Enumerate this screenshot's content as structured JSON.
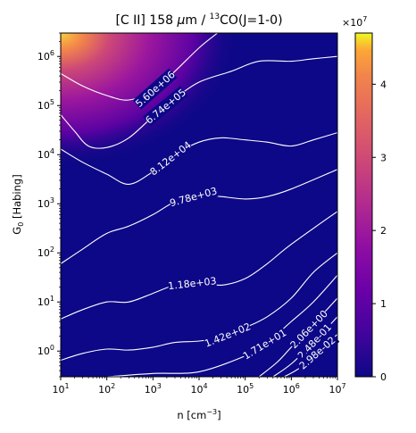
{
  "chart_data": {
    "type": "heatmap",
    "title": "[C II] 158 μm / ¹³CO(J=1-0)",
    "title_parts": {
      "prefix": "[C II] 158 ",
      "mu": "μ",
      "unit": "m / ",
      "iso": "13",
      "suffix": "CO(J=1-0)"
    },
    "xlabel": "n [cm⁻³]",
    "xlabel_parts": {
      "base": "n [cm",
      "sup": "−3",
      "close": "]"
    },
    "ylabel": "G₀ [Habing]",
    "ylabel_parts": {
      "base": "G",
      "sub": "0",
      "rest": " [Habing]"
    },
    "x_scale": "log",
    "y_scale": "log",
    "xlim": [
      10,
      10000000
    ],
    "ylim": [
      0.3,
      3000000
    ],
    "x_ticks": [
      {
        "value": 10,
        "mant": "10",
        "exp": "1"
      },
      {
        "value": 100,
        "mant": "10",
        "exp": "2"
      },
      {
        "value": 1000,
        "mant": "10",
        "exp": "3"
      },
      {
        "value": 10000,
        "mant": "10",
        "exp": "4"
      },
      {
        "value": 100000,
        "mant": "10",
        "exp": "5"
      },
      {
        "value": 1000000,
        "mant": "10",
        "exp": "6"
      },
      {
        "value": 10000000,
        "mant": "10",
        "exp": "7"
      }
    ],
    "y_ticks": [
      {
        "value": 1,
        "mant": "10",
        "exp": "0"
      },
      {
        "value": 10,
        "mant": "10",
        "exp": "1"
      },
      {
        "value": 100,
        "mant": "10",
        "exp": "2"
      },
      {
        "value": 1000,
        "mant": "10",
        "exp": "3"
      },
      {
        "value": 10000,
        "mant": "10",
        "exp": "4"
      },
      {
        "value": 100000,
        "mant": "10",
        "exp": "5"
      },
      {
        "value": 1000000,
        "mant": "10",
        "exp": "6"
      }
    ],
    "colormap": "plasma",
    "colorbar": {
      "range": [
        0,
        47000000
      ],
      "ticks": [
        {
          "value": 0,
          "label": "0"
        },
        {
          "value": 10000000,
          "label": "1"
        },
        {
          "value": 20000000,
          "label": "2"
        },
        {
          "value": 30000000,
          "label": "3"
        },
        {
          "value": 40000000,
          "label": "4"
        }
      ],
      "multiplier_base": "×10",
      "multiplier_exp": "7"
    },
    "contours": [
      {
        "label": "5.60e+06",
        "points": [
          [
            10,
            450000
          ],
          [
            30,
            250000
          ],
          [
            100,
            160000
          ],
          [
            300,
            130000
          ],
          [
            1000,
            200000
          ],
          [
            3000,
            500000
          ],
          [
            10000,
            1500000
          ],
          [
            25000,
            3000000
          ]
        ]
      },
      {
        "label": "6.74e+05",
        "points": [
          [
            10,
            65000
          ],
          [
            20,
            30000
          ],
          [
            40,
            15000
          ],
          [
            100,
            14000
          ],
          [
            300,
            22000
          ],
          [
            1000,
            60000
          ],
          [
            3000,
            140000
          ],
          [
            10000,
            300000
          ],
          [
            50000,
            500000
          ],
          [
            200000,
            800000
          ],
          [
            1000000,
            800000
          ],
          [
            3000000,
            900000
          ],
          [
            10000000,
            1000000
          ]
        ]
      },
      {
        "label": "8.12e+04",
        "points": [
          [
            10,
            13000
          ],
          [
            30,
            7000
          ],
          [
            100,
            4000
          ],
          [
            300,
            2500
          ],
          [
            1000,
            4500
          ],
          [
            3000,
            10000
          ],
          [
            10000,
            18000
          ],
          [
            30000,
            22000
          ],
          [
            100000,
            20000
          ],
          [
            300000,
            18000
          ],
          [
            1000000,
            15000
          ],
          [
            3000000,
            20000
          ],
          [
            10000000,
            28000
          ]
        ]
      },
      {
        "label": "9.78e+03",
        "points": [
          [
            10,
            60
          ],
          [
            30,
            120
          ],
          [
            100,
            250
          ],
          [
            300,
            350
          ],
          [
            1000,
            600
          ],
          [
            3000,
            1100
          ],
          [
            10000,
            1500
          ],
          [
            30000,
            1400
          ],
          [
            100000,
            1250
          ],
          [
            300000,
            1400
          ],
          [
            1000000,
            2000
          ],
          [
            10000000,
            5000
          ]
        ]
      },
      {
        "label": "1.18e+03",
        "points": [
          [
            10,
            4.5
          ],
          [
            30,
            7
          ],
          [
            100,
            10
          ],
          [
            300,
            10
          ],
          [
            1000,
            15
          ],
          [
            3000,
            22
          ],
          [
            10000,
            25
          ],
          [
            30000,
            22
          ],
          [
            100000,
            30
          ],
          [
            300000,
            60
          ],
          [
            1000000,
            150
          ],
          [
            10000000,
            700
          ]
        ]
      },
      {
        "label": "1.42e+02",
        "points": [
          [
            10,
            0.65
          ],
          [
            30,
            0.9
          ],
          [
            100,
            1.1
          ],
          [
            300,
            1.05
          ],
          [
            1000,
            1.2
          ],
          [
            3000,
            1.5
          ],
          [
            10000,
            1.6
          ],
          [
            30000,
            1.9
          ],
          [
            100000,
            3
          ],
          [
            300000,
            5
          ],
          [
            1000000,
            12
          ],
          [
            3000000,
            40
          ],
          [
            10000000,
            100
          ]
        ]
      },
      {
        "label": "1.71e+01",
        "points": [
          [
            100,
            0.3
          ],
          [
            1000,
            0.35
          ],
          [
            10000,
            0.38
          ],
          [
            100000,
            0.8
          ],
          [
            300000,
            1.5
          ],
          [
            1000000,
            4
          ],
          [
            3000000,
            10
          ],
          [
            10000000,
            35
          ]
        ]
      },
      {
        "label": "2.06e+00",
        "points": [
          [
            200000,
            0.3
          ],
          [
            500000,
            0.6
          ],
          [
            1000000,
            1.2
          ],
          [
            3000000,
            3.5
          ],
          [
            10000000,
            12
          ]
        ]
      },
      {
        "label": "2.48e-01",
        "points": [
          [
            400000,
            0.3
          ],
          [
            1000000,
            0.55
          ],
          [
            3000000,
            1.5
          ],
          [
            10000000,
            5
          ]
        ]
      },
      {
        "label": "2.98e-02",
        "points": [
          [
            700000,
            0.3
          ],
          [
            1500000,
            0.45
          ],
          [
            4000000,
            1.0
          ],
          [
            10000000,
            2.2
          ]
        ]
      }
    ],
    "grid": false
  }
}
